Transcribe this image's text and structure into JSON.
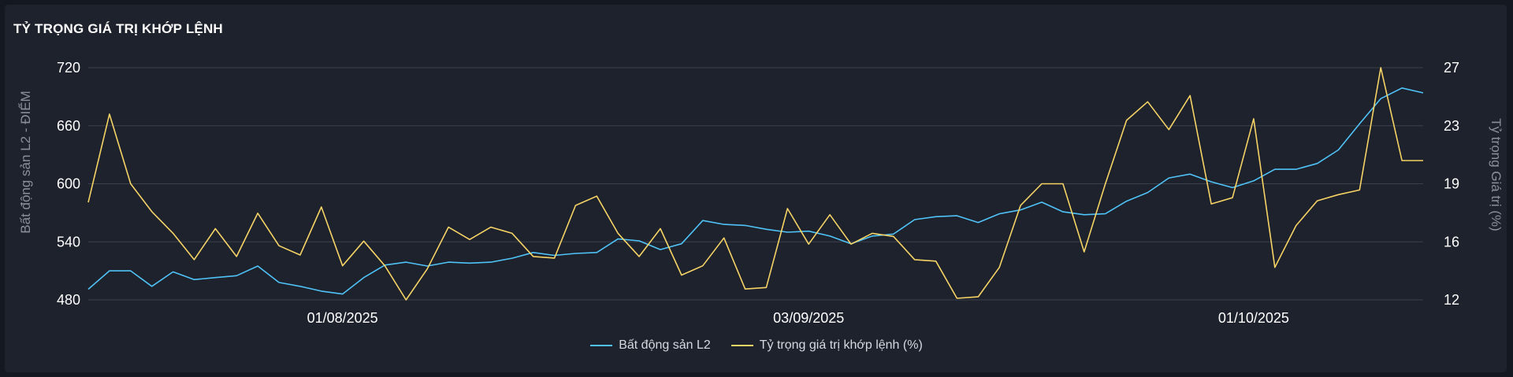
{
  "title": "TỶ TRỌNG GIÁ TRỊ KHỚP LỆNH",
  "colors": {
    "background": "#1e222d",
    "grid": "#3a404c",
    "series_blue": "#4fc3f7",
    "series_yellow": "#f6d365"
  },
  "chart_data": {
    "type": "line",
    "title": "TỶ TRỌNG GIÁ TRỊ KHỚP LỆNH",
    "y_left_label": "Bất động sản L2 - ĐIỂM",
    "y_right_label": "Tỷ trọng Giá trị (%)",
    "y_left_range": [
      480,
      720
    ],
    "y_right_range": [
      12,
      27
    ],
    "y_left_ticks": [
      "480",
      "540",
      "600",
      "660",
      "720"
    ],
    "y_right_ticks": [
      "12",
      "16",
      "19",
      "23",
      "27"
    ],
    "x_tick_labels": [
      "01/08/2025",
      "03/09/2025",
      "01/10/2025"
    ],
    "x_tick_index": [
      12,
      34,
      55
    ],
    "grid": true,
    "legend_position": "bottom",
    "series": [
      {
        "name": "Bất động sản L2",
        "axis": "left",
        "values": [
          491,
          510,
          510,
          494,
          509,
          501,
          503,
          505,
          515,
          498,
          494,
          489,
          486,
          503,
          516,
          519,
          515,
          519,
          518,
          519,
          523,
          529,
          526,
          528,
          529,
          543,
          541,
          532,
          538,
          562,
          558,
          557,
          553,
          550,
          551,
          546,
          538,
          546,
          548,
          563,
          566,
          567,
          560,
          569,
          573,
          581,
          571,
          568,
          569,
          582,
          591,
          606,
          610,
          602,
          596,
          603,
          615,
          615,
          621,
          635,
          662,
          688,
          699,
          694
        ]
      },
      {
        "name": "Tỷ trọng giá trị khớp lệnh (%)",
        "axis": "right",
        "values": [
          18.3,
          24.0,
          19.5,
          17.7,
          16.3,
          14.6,
          16.6,
          14.8,
          17.6,
          15.5,
          14.9,
          18.0,
          14.2,
          15.8,
          14.2,
          12.0,
          14.0,
          16.7,
          15.9,
          16.7,
          16.3,
          14.8,
          14.7,
          18.1,
          18.7,
          16.3,
          14.8,
          16.6,
          13.6,
          14.2,
          16.0,
          12.7,
          12.8,
          17.9,
          15.6,
          17.5,
          15.6,
          16.3,
          16.1,
          14.6,
          14.5,
          12.1,
          12.2,
          14.1,
          18.1,
          19.5,
          19.5,
          15.1,
          19.5,
          23.6,
          24.8,
          23.0,
          25.2,
          18.2,
          18.6,
          23.7,
          14.1,
          16.8,
          18.4,
          18.8,
          19.1,
          27.0,
          21.0,
          21.0
        ]
      }
    ]
  }
}
